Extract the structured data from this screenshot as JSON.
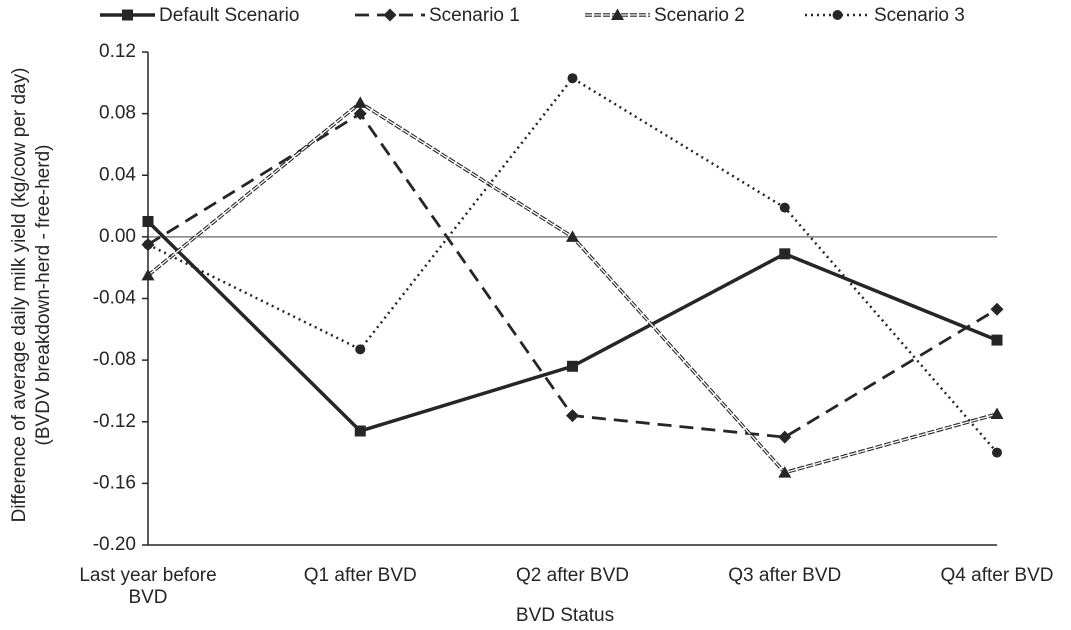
{
  "chart_data": {
    "type": "line",
    "ylabel": [
      "Difference of average daily milk yield (kg/cow per day)",
      "(BVDV breakdown-herd  -  free-herd)"
    ],
    "xlabel": "BVD Status",
    "categories": [
      "Last year before BVD",
      "Q1 after BVD",
      "Q2 after BVD",
      "Q3 after BVD",
      "Q4 after BVD"
    ],
    "series": [
      {
        "name": "Default Scenario",
        "color": "#262626",
        "line_style": "solid",
        "marker": "square",
        "values": [
          0.01,
          -0.126,
          -0.084,
          -0.011,
          -0.067
        ]
      },
      {
        "name": "Scenario 1",
        "color": "#262626",
        "line_style": "dashed",
        "marker": "diamond",
        "values": [
          -0.005,
          0.08,
          -0.116,
          -0.13,
          -0.047
        ]
      },
      {
        "name": "Scenario 2",
        "color": "#262626",
        "line_style": "double-dashed",
        "marker": "triangle",
        "values": [
          -0.025,
          0.087,
          0.0,
          -0.153,
          -0.115
        ]
      },
      {
        "name": "Scenario 3",
        "color": "#262626",
        "line_style": "dotted",
        "marker": "circle",
        "values": [
          -0.005,
          -0.073,
          0.103,
          0.019,
          -0.14
        ]
      }
    ],
    "ylim": [
      -0.2,
      0.12
    ],
    "yticks": [
      0.12,
      0.08,
      0.04,
      {
        "value": 0,
        "label": "0.00"
      },
      -0.04,
      -0.08,
      -0.12,
      -0.16,
      {
        "value": -0.2,
        "label": "-0.20"
      }
    ],
    "legend": "top"
  }
}
